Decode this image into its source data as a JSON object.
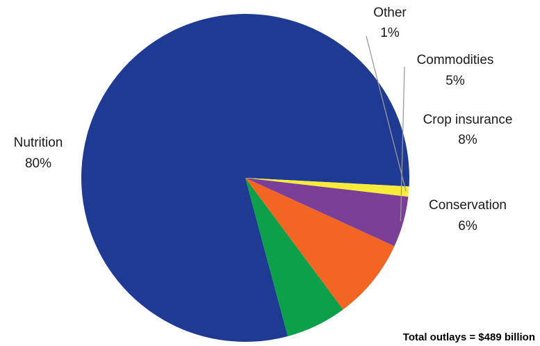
{
  "chart_data": {
    "type": "pie",
    "slices": [
      {
        "label": "Nutrition",
        "value": 80,
        "display": "80%",
        "color": "#1f3a93"
      },
      {
        "label": "Conservation",
        "value": 6,
        "display": "6%",
        "color": "#0ca04b"
      },
      {
        "label": "Crop insurance",
        "value": 8,
        "display": "8%",
        "color": "#f26522"
      },
      {
        "label": "Commodities",
        "value": 5,
        "display": "5%",
        "color": "#7b3f98"
      },
      {
        "label": "Other",
        "value": 1,
        "display": "1%",
        "color": "#f7ec3a"
      }
    ],
    "note": "Total outlays = $489 billion",
    "legend": "none (direct slice labels)"
  }
}
